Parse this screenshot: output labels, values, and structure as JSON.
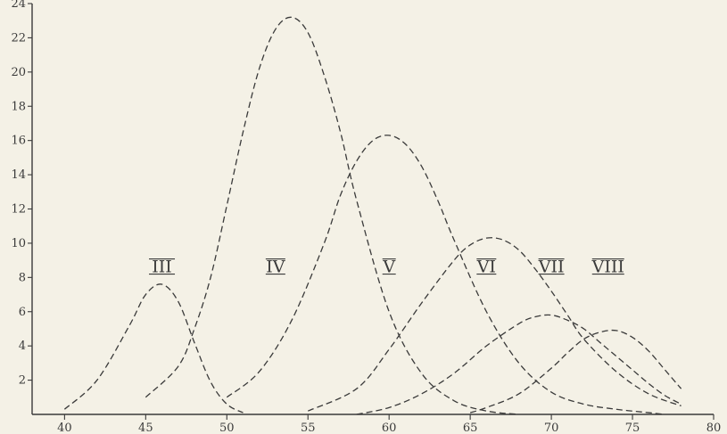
{
  "chart_data": {
    "type": "line",
    "title": "",
    "xlabel": "",
    "ylabel": "",
    "xlim": [
      38,
      80
    ],
    "ylim": [
      0,
      24
    ],
    "grid": false,
    "legend": "none",
    "x_ticks": [
      40,
      45,
      50,
      55,
      60,
      65,
      70,
      75,
      80
    ],
    "y_ticks": [
      2,
      4,
      6,
      8,
      10,
      12,
      14,
      16,
      18,
      20,
      22,
      24
    ],
    "y_tick_labels": [
      "2",
      "4",
      "6",
      "8",
      "10",
      "12",
      "14",
      "16",
      "18",
      "20",
      "22",
      "24"
    ],
    "line_style": "dashed",
    "line_color": "#3a3a3a",
    "series": [
      {
        "name": "III",
        "label_at": [
          46,
          8.3
        ],
        "x": [
          40,
          42,
          44,
          45,
          46,
          47,
          48,
          49,
          50,
          51
        ],
        "y": [
          0.3,
          2.0,
          5.2,
          7.0,
          7.6,
          6.6,
          4.2,
          1.9,
          0.6,
          0.1
        ]
      },
      {
        "name": "IV",
        "label_at": [
          53,
          8.3
        ],
        "x": [
          45,
          47,
          48,
          49,
          50,
          51,
          52,
          53,
          54,
          55,
          56,
          57,
          58,
          60,
          62,
          64,
          66,
          68
        ],
        "y": [
          1.0,
          2.8,
          5.0,
          8.0,
          12.2,
          16.5,
          20.2,
          22.5,
          23.2,
          22.3,
          19.8,
          16.5,
          12.5,
          6.0,
          2.4,
          0.8,
          0.2,
          0.0
        ]
      },
      {
        "name": "V",
        "label_at": [
          60,
          8.3
        ],
        "x": [
          50,
          52,
          54,
          56,
          57,
          58,
          59,
          60,
          61,
          62,
          63,
          64,
          66,
          68,
          70,
          72,
          74,
          76,
          77
        ],
        "y": [
          1.0,
          2.5,
          5.5,
          10.0,
          12.8,
          14.8,
          16.0,
          16.3,
          15.8,
          14.5,
          12.5,
          10.2,
          6.0,
          3.0,
          1.3,
          0.6,
          0.3,
          0.1,
          0.0
        ]
      },
      {
        "name": "VI",
        "label_at": [
          66,
          8.3
        ],
        "x": [
          55,
          58,
          60,
          62,
          64,
          65,
          66,
          67,
          68,
          69,
          70,
          71,
          72,
          74,
          76,
          78
        ],
        "y": [
          0.2,
          1.5,
          3.8,
          6.5,
          9.0,
          9.9,
          10.3,
          10.2,
          9.6,
          8.5,
          7.2,
          5.8,
          4.4,
          2.5,
          1.2,
          0.5
        ]
      },
      {
        "name": "VII",
        "label_at": [
          70,
          8.3
        ],
        "x": [
          58,
          60,
          62,
          64,
          66,
          68,
          69,
          70,
          71,
          72,
          73,
          74,
          75,
          76,
          77,
          78
        ],
        "y": [
          0.0,
          0.4,
          1.2,
          2.4,
          4.0,
          5.3,
          5.7,
          5.8,
          5.5,
          5.0,
          4.2,
          3.4,
          2.6,
          1.8,
          1.1,
          0.6
        ]
      },
      {
        "name": "VIII",
        "label_at": [
          73.5,
          8.3
        ],
        "x": [
          65,
          66,
          68,
          70,
          71,
          72,
          73,
          74,
          75,
          76,
          77,
          78
        ],
        "y": [
          0.1,
          0.4,
          1.2,
          2.7,
          3.6,
          4.4,
          4.8,
          4.9,
          4.5,
          3.7,
          2.6,
          1.5
        ]
      }
    ]
  }
}
